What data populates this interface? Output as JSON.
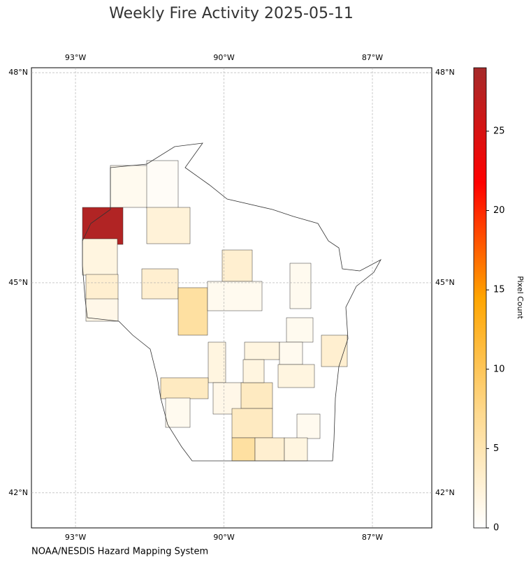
{
  "title": "Weekly Fire Activity 2025-05-11",
  "map": {
    "xlim": [
      -93.89,
      -85.8
    ],
    "ylim": [
      41.5,
      48.07
    ],
    "xticks": [
      {
        "value": -93,
        "label": "93°W"
      },
      {
        "value": -90,
        "label": "90°W"
      },
      {
        "value": -87,
        "label": "87°W"
      }
    ],
    "yticks": [
      {
        "value": 42,
        "label": "42°N"
      },
      {
        "value": 45,
        "label": "45°N"
      },
      {
        "value": 48,
        "label": "48°N"
      }
    ],
    "grid": true,
    "region_values": [
      28,
      1,
      0.5,
      2.5,
      2,
      3,
      1.5,
      3,
      6,
      3,
      1,
      1,
      1,
      3,
      2,
      2,
      1,
      2,
      4,
      1,
      1.5,
      4,
      4,
      1,
      6,
      3,
      2,
      2
    ]
  },
  "colorbar": {
    "label": "Pixel Count",
    "clim": [
      0,
      29
    ],
    "ticks": [
      0,
      5,
      10,
      15,
      20,
      25
    ],
    "colors": [
      "#ffffff",
      "#fed98e",
      "#ffa500",
      "#ff0000",
      "#a52a2a"
    ]
  },
  "source": "NOAA/NESDIS Hazard Mapping System"
}
